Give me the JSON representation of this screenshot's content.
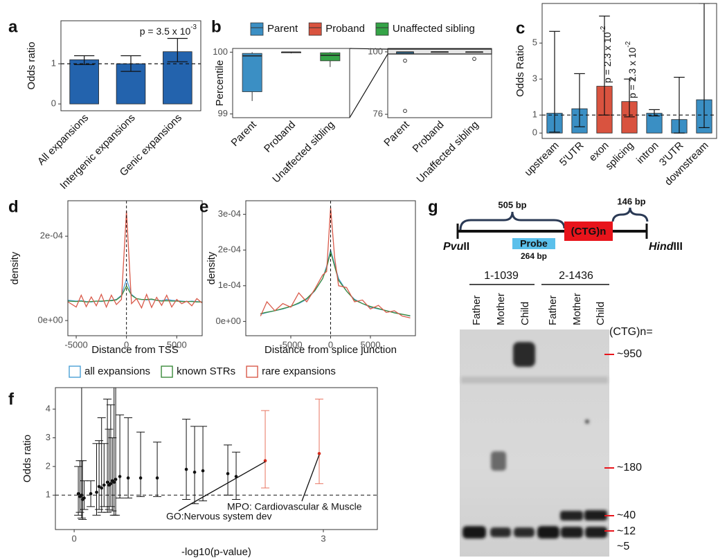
{
  "chart_data": [
    {
      "panel": "a",
      "type": "bar",
      "ylabel": "Odds ratio",
      "categories": [
        "All expansions",
        "Intergenic expansions",
        "Genic expansions"
      ],
      "values": [
        1.1,
        1.0,
        1.3
      ],
      "lo": [
        0.98,
        0.81,
        1.05
      ],
      "hi": [
        1.2,
        1.2,
        1.63
      ],
      "color": "#2363ad",
      "ylim": [
        -0.17,
        2.07
      ],
      "yticks": [
        0,
        1
      ],
      "reference_line": 1,
      "annotation": {
        "text": "p = 3.5 x 10",
        "superscript": "-3"
      }
    },
    {
      "panel": "b",
      "type": "box",
      "ylabel": "Percentile",
      "categories": [
        "Parent",
        "Proband",
        "Unaffected sibling"
      ],
      "series": [
        {
          "name": "Parent",
          "color": "#3b8fc4",
          "min": 99.21,
          "q1": 99.36,
          "median": 99.94,
          "q3": 99.98,
          "max": 100.0,
          "outliers": [
            96.6,
            77.3
          ]
        },
        {
          "name": "Proband",
          "color": "#d9533f",
          "min": 99.98,
          "q1": 99.99,
          "median": 100.0,
          "q3": 100.0,
          "max": 100.0,
          "outliers": []
        },
        {
          "name": "Unaffected sibling",
          "color": "#35a447",
          "min": 99.76,
          "q1": 99.86,
          "median": 99.95,
          "q3": 99.99,
          "max": 100.0,
          "outliers": [
            97.3
          ]
        }
      ],
      "ylim": [
        98.94,
        100.06
      ],
      "yticks": [
        99,
        100
      ],
      "inset": {
        "ylim": [
          74.7,
          101.3
        ],
        "yticks": [
          76,
          100
        ]
      }
    },
    {
      "panel": "c",
      "type": "bar",
      "ylabel": "Odds Ratio",
      "categories": [
        "upstream",
        "5'UTR",
        "exon",
        "splicing",
        "intron",
        "3'UTR",
        "downstream"
      ],
      "values": [
        1.1,
        1.35,
        2.6,
        1.75,
        1.1,
        0.75,
        1.85
      ],
      "lo": [
        0.05,
        0.35,
        1.0,
        0.9,
        0.95,
        0.0,
        0.3
      ],
      "hi": [
        5.65,
        3.3,
        6.5,
        3.0,
        1.3,
        3.1,
        7.2
      ],
      "colors": [
        "#3a8fc4",
        "#3a8fc4",
        "#d9533f",
        "#d9533f",
        "#3a8fc4",
        "#3a8fc4",
        "#3a8fc4"
      ],
      "ylim": [
        -0.3,
        7.2
      ],
      "yticks": [
        0,
        1,
        3,
        5
      ],
      "reference_line": 1,
      "annotations": [
        {
          "text": "p = 2.3 x 10",
          "superscript": "-2"
        },
        {
          "text": "p = 2.3 x 10",
          "superscript": "-2"
        }
      ]
    },
    {
      "panel": "d",
      "type": "line",
      "ylabel": "density",
      "xlabel": "Distance from TSS",
      "x": [
        -5800,
        -5000,
        -4500,
        -4000,
        -3500,
        -3000,
        -2500,
        -2000,
        -1500,
        -1000,
        -500,
        0,
        500,
        1000,
        1500,
        2000,
        2500,
        3000,
        3500,
        4000,
        4500,
        5000,
        5500,
        6000,
        6500,
        7000,
        7500
      ],
      "series": [
        {
          "name": "all expansions",
          "color": "#4a9fd6",
          "values": [
            4.8e-05,
            4.6e-05,
            4.7e-05,
            4.5e-05,
            4.4e-05,
            4.6e-05,
            4.5e-05,
            4.7e-05,
            4.8e-05,
            5e-05,
            6e-05,
            9.8e-05,
            6.2e-05,
            5.2e-05,
            5e-05,
            4.9e-05,
            5e-05,
            4.8e-05,
            4.7e-05,
            5e-05,
            4.8e-05,
            4.7e-05,
            4.6e-05,
            4.5e-05,
            4.6e-05,
            4.5e-05,
            4.4e-05
          ]
        },
        {
          "name": "known STRs",
          "color": "#3a8a3a",
          "values": [
            4.6e-05,
            4.5e-05,
            4.6e-05,
            4.4e-05,
            4.5e-05,
            4.6e-05,
            4.6e-05,
            4.7e-05,
            4.7e-05,
            4.9e-05,
            5.8e-05,
            8.2e-05,
            6e-05,
            5.2e-05,
            5e-05,
            5e-05,
            5.1e-05,
            4.8e-05,
            4.6e-05,
            4.7e-05,
            4.6e-05,
            4.6e-05,
            4.5e-05,
            4.5e-05,
            4.5e-05,
            4.4e-05,
            4.4e-05
          ]
        },
        {
          "name": "rare expansions",
          "color": "#d95a4a",
          "values": [
            4.4e-05,
            3.2e-05,
            6e-05,
            3.3e-05,
            5.6e-05,
            3.5e-05,
            6.2e-05,
            3.2e-05,
            6e-05,
            3.8e-05,
            5e-05,
            0.00026,
            4e-05,
            5.2e-05,
            3e-05,
            6.2e-05,
            3.1e-05,
            5.5e-05,
            3.6e-05,
            6e-05,
            3.2e-05,
            5e-05,
            4e-05,
            4.6e-05,
            3.5e-05,
            5.2e-05,
            4.2e-05
          ]
        }
      ],
      "xlim": [
        -5830,
        7530
      ],
      "xticks": [
        -5000,
        0,
        5000
      ],
      "vline": 0,
      "ylim": [
        -3.6e-05,
        0.000284
      ],
      "yticks": [
        {
          "value": 0,
          "label": "0e+00"
        },
        {
          "value": 0.0002,
          "label": "2e-04"
        }
      ]
    },
    {
      "panel": "e",
      "type": "line",
      "ylabel": "density",
      "xlabel": "Distance from splice junction",
      "x": [
        -8800,
        -8000,
        -7000,
        -6000,
        -5000,
        -4000,
        -3000,
        -2000,
        -1000,
        -500,
        0,
        500,
        1000,
        2000,
        3000,
        4000,
        5000,
        6000,
        7000,
        8000,
        9000,
        10000
      ],
      "series": [
        {
          "color": "#4a9fd6",
          "values": [
            2e-05,
            2.5e-05,
            3e-05,
            3.5e-05,
            4.2e-05,
            5e-05,
            6.2e-05,
            8.5e-05,
            0.00012,
            0.000155,
            0.0002,
            0.00016,
            0.00012,
            8.5e-05,
            6.2e-05,
            5e-05,
            4e-05,
            3.5e-05,
            3e-05,
            2.5e-05,
            2e-05,
            1.5e-05
          ]
        },
        {
          "color": "#3a8a3a",
          "values": [
            2.2e-05,
            2.6e-05,
            3e-05,
            3.6e-05,
            4.2e-05,
            5.2e-05,
            6.4e-05,
            8.6e-05,
            0.00012,
            0.00015,
            0.000195,
            0.000155,
            0.000115,
            8.5e-05,
            6e-05,
            5e-05,
            4.2e-05,
            3.6e-05,
            3e-05,
            2.4e-05,
            2e-05,
            1.6e-05
          ]
        },
        {
          "color": "#d95a4a",
          "values": [
            1.5e-05,
            5.5e-05,
            3e-05,
            5e-05,
            4e-05,
            8e-05,
            5.5e-05,
            9e-05,
            0.00013,
            0.00014,
            0.00032,
            0.00018,
            0.0001,
            9.5e-05,
            5.5e-05,
            6e-05,
            3.5e-05,
            4.5e-05,
            2.5e-05,
            3e-05,
            1.5e-05,
            1e-05
          ]
        }
      ],
      "xlim": [
        -10650,
        10650
      ],
      "xticks": [
        -5000,
        0,
        5000
      ],
      "vline": 0,
      "ylim": [
        -4e-05,
        0.000338
      ],
      "yticks": [
        {
          "value": 0,
          "label": "0e+00"
        },
        {
          "value": 0.0001,
          "label": "1e-04"
        },
        {
          "value": 0.0002,
          "label": "2e-04"
        },
        {
          "value": 0.0003,
          "label": "3e-04"
        }
      ]
    },
    {
      "panel": "f",
      "type": "scatter",
      "ylabel": "Odds ratio",
      "xlabel": "-log10(p-value)",
      "series": [
        {
          "color": "#111111",
          "x": [
            0.05,
            0.07,
            0.09,
            0.1,
            0.12,
            0.2,
            0.27,
            0.3,
            0.33,
            0.36,
            0.4,
            0.42,
            0.44,
            0.46,
            0.48,
            0.5,
            0.55,
            0.65,
            0.8,
            1.0,
            1.35,
            1.45,
            1.55,
            1.85,
            1.95
          ],
          "values": [
            1.05,
            0.95,
            1.0,
            0.85,
            0.9,
            1.05,
            1.1,
            1.3,
            1.25,
            1.35,
            1.45,
            1.35,
            1.4,
            1.5,
            1.45,
            1.55,
            1.65,
            1.6,
            1.6,
            1.6,
            1.9,
            1.8,
            1.85,
            1.75,
            1.65
          ],
          "lo": [
            0.3,
            0.4,
            0.2,
            0.15,
            0.5,
            0.6,
            0.3,
            0.5,
            0.4,
            0.6,
            0.4,
            0.5,
            0.6,
            0.45,
            0.3,
            0.3,
            0.9,
            0.9,
            0.95,
            0.95,
            0.85,
            0.7,
            0.8,
            1.0,
            0.85
          ],
          "hi": [
            2.0,
            2.2,
            4.75,
            2.2,
            1.5,
            1.5,
            2.8,
            2.9,
            3.7,
            2.8,
            4.35,
            3.3,
            4.15,
            3.0,
            4.75,
            4.75,
            3.8,
            3.7,
            3.2,
            2.85,
            3.65,
            3.4,
            3.4,
            2.75,
            2.5
          ]
        },
        {
          "color": "#e8735f",
          "x": [
            2.3,
            2.95
          ],
          "values": [
            2.2,
            2.45
          ],
          "lo": [
            1.25,
            1.4
          ],
          "hi": [
            3.95,
            4.35
          ]
        }
      ],
      "xlim": [
        -0.226,
        3.65
      ],
      "xticks": [
        0,
        3
      ],
      "ylim": [
        -0.2,
        4.75
      ],
      "yticks": [
        1,
        2,
        3,
        4
      ],
      "reference_line": 1,
      "annotations": [
        "GO:Nervous system dev",
        "MPO: Cardiovascular & Muscle"
      ]
    }
  ],
  "diagram": {
    "panel": "g",
    "left_arm": "505 bp",
    "right_arm": "146 bp",
    "repeat": "(CTG)n",
    "probe": "Probe",
    "probe_length": "264 bp",
    "left_site": {
      "italic": "Pvu",
      "roman": "II"
    },
    "right_site": {
      "italic": "Hind",
      "roman": "III"
    },
    "gel": {
      "families": [
        {
          "id": "1-1039",
          "lanes": [
            "Father",
            "Mother",
            "Child"
          ]
        },
        {
          "id": "2-1436",
          "lanes": [
            "Father",
            "Mother",
            "Child"
          ]
        }
      ],
      "size_header": "(CTG)n=",
      "size_markers": [
        "~950",
        "~180",
        "~40",
        "~12",
        "~5"
      ]
    }
  }
}
